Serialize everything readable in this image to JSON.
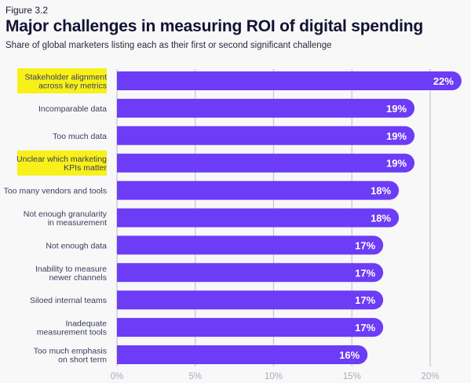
{
  "figure_label": "Figure 3.2",
  "chart_data": {
    "type": "bar",
    "orientation": "horizontal",
    "title": "Major challenges in measuring ROI of digital spending",
    "subtitle": "Share of global marketers listing each as their first or second significant challenge",
    "categories": [
      [
        "Stakeholder alignment",
        "across key metrics"
      ],
      [
        "Incomparable data"
      ],
      [
        "Too much data"
      ],
      [
        "Unclear which marketing",
        "KPIs matter"
      ],
      [
        "Too many vendors and tools"
      ],
      [
        "Not enough granularity",
        "in measurement"
      ],
      [
        "Not enough data"
      ],
      [
        "Inability to measure",
        "newer channels"
      ],
      [
        "Siloed internal teams"
      ],
      [
        "Inadequate",
        "measurement tools"
      ],
      [
        "Too much emphasis",
        "on short term"
      ]
    ],
    "values": [
      22,
      19,
      19,
      19,
      18,
      18,
      17,
      17,
      17,
      17,
      16
    ],
    "data_labels": [
      "22%",
      "19%",
      "19%",
      "19%",
      "18%",
      "18%",
      "17%",
      "17%",
      "17%",
      "17%",
      "16%"
    ],
    "highlighted": [
      true,
      false,
      false,
      true,
      false,
      false,
      false,
      false,
      false,
      false,
      false
    ],
    "xlim": [
      0,
      22
    ],
    "xticks": [
      0,
      5,
      10,
      15,
      20
    ],
    "xtick_labels": [
      "0%",
      "5%",
      "10%",
      "15%",
      "20%"
    ],
    "grid": true,
    "colors": {
      "bar": "#6c3cf6",
      "highlight": "#f7f019",
      "grid": "#c4c6d2",
      "label": "#3a3d5c",
      "tick": "#a8abbc"
    }
  }
}
